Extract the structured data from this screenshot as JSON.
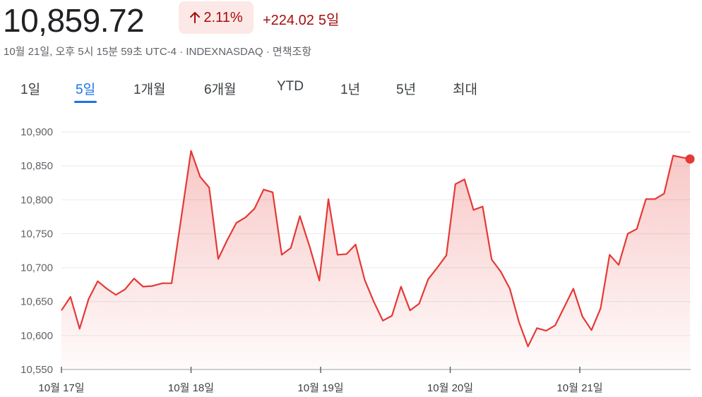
{
  "header": {
    "price": "10,859.72",
    "percent_change": "2.11%",
    "arrow_icon": "arrow-up-icon",
    "abs_change": "+224.02",
    "period": "5일",
    "meta": "10월 21일, 오후 5시 15분 59초 UTC-4 · INDEXNASDAQ · 면책조항"
  },
  "tabs": [
    {
      "label": "1일",
      "active": false
    },
    {
      "label": "5일",
      "active": true
    },
    {
      "label": "1개월",
      "active": false
    },
    {
      "label": "6개월",
      "active": false
    },
    {
      "label": "YTD",
      "active": false
    },
    {
      "label": "1년",
      "active": false
    },
    {
      "label": "5년",
      "active": false
    },
    {
      "label": "최대",
      "active": false
    }
  ],
  "colors": {
    "line": "#e53935",
    "accent": "#1a73e8",
    "negative_text": "#a50e0e",
    "badge_bg": "#fce8e6"
  },
  "chart_data": {
    "type": "area",
    "title": "",
    "xlabel": "",
    "ylabel": "",
    "ylim": [
      10550,
      10900
    ],
    "y_ticks": [
      10550,
      10600,
      10650,
      10700,
      10750,
      10800,
      10850,
      10900
    ],
    "y_tick_labels": [
      "10,550",
      "10,600",
      "10,650",
      "10,700",
      "10,750",
      "10,800",
      "10,850",
      "10,900"
    ],
    "x_ticks": [
      {
        "label": "10월 17일",
        "x": 0
      },
      {
        "label": "10월 18일",
        "x": 1
      },
      {
        "label": "10월 19일",
        "x": 2
      },
      {
        "label": "10월 20일",
        "x": 3
      },
      {
        "label": "10월 21일",
        "x": 4
      }
    ],
    "grid": true,
    "series": [
      {
        "values": [
          [
            0.0,
            10637
          ],
          [
            0.07,
            10657
          ],
          [
            0.14,
            10610
          ],
          [
            0.21,
            10654
          ],
          [
            0.28,
            10680
          ],
          [
            0.35,
            10669
          ],
          [
            0.42,
            10660
          ],
          [
            0.49,
            10668
          ],
          [
            0.56,
            10684
          ],
          [
            0.63,
            10672
          ],
          [
            0.7,
            10673
          ],
          [
            0.78,
            10677
          ],
          [
            0.85,
            10677
          ],
          [
            1.0,
            10872
          ],
          [
            1.07,
            10834
          ],
          [
            1.14,
            10818
          ],
          [
            1.21,
            10713
          ],
          [
            1.28,
            10741
          ],
          [
            1.35,
            10766
          ],
          [
            1.42,
            10774
          ],
          [
            1.49,
            10787
          ],
          [
            1.56,
            10815
          ],
          [
            1.63,
            10811
          ],
          [
            1.7,
            10719
          ],
          [
            1.77,
            10729
          ],
          [
            1.84,
            10776
          ],
          [
            1.92,
            10728
          ],
          [
            1.99,
            10681
          ],
          [
            2.06,
            10801
          ],
          [
            2.13,
            10719
          ],
          [
            2.2,
            10720
          ],
          [
            2.27,
            10734
          ],
          [
            2.34,
            10682
          ],
          [
            2.41,
            10650
          ],
          [
            2.48,
            10622
          ],
          [
            2.55,
            10629
          ],
          [
            2.62,
            10672
          ],
          [
            2.69,
            10637
          ],
          [
            2.76,
            10647
          ],
          [
            2.83,
            10683
          ],
          [
            2.9,
            10700
          ],
          [
            2.97,
            10718
          ],
          [
            3.04,
            10823
          ],
          [
            3.11,
            10830
          ],
          [
            3.18,
            10785
          ],
          [
            3.25,
            10790
          ],
          [
            3.32,
            10712
          ],
          [
            3.39,
            10694
          ],
          [
            3.46,
            10669
          ],
          [
            3.53,
            10620
          ],
          [
            3.6,
            10584
          ],
          [
            3.67,
            10611
          ],
          [
            3.74,
            10607
          ],
          [
            3.81,
            10615
          ],
          [
            3.88,
            10642
          ],
          [
            3.95,
            10669
          ],
          [
            4.02,
            10628
          ],
          [
            4.09,
            10608
          ],
          [
            4.16,
            10640
          ],
          [
            4.23,
            10719
          ],
          [
            4.3,
            10704
          ],
          [
            4.37,
            10750
          ],
          [
            4.44,
            10757
          ],
          [
            4.51,
            10801
          ],
          [
            4.58,
            10801
          ],
          [
            4.65,
            10809
          ],
          [
            4.72,
            10865
          ],
          [
            4.85,
            10860
          ]
        ]
      }
    ]
  }
}
